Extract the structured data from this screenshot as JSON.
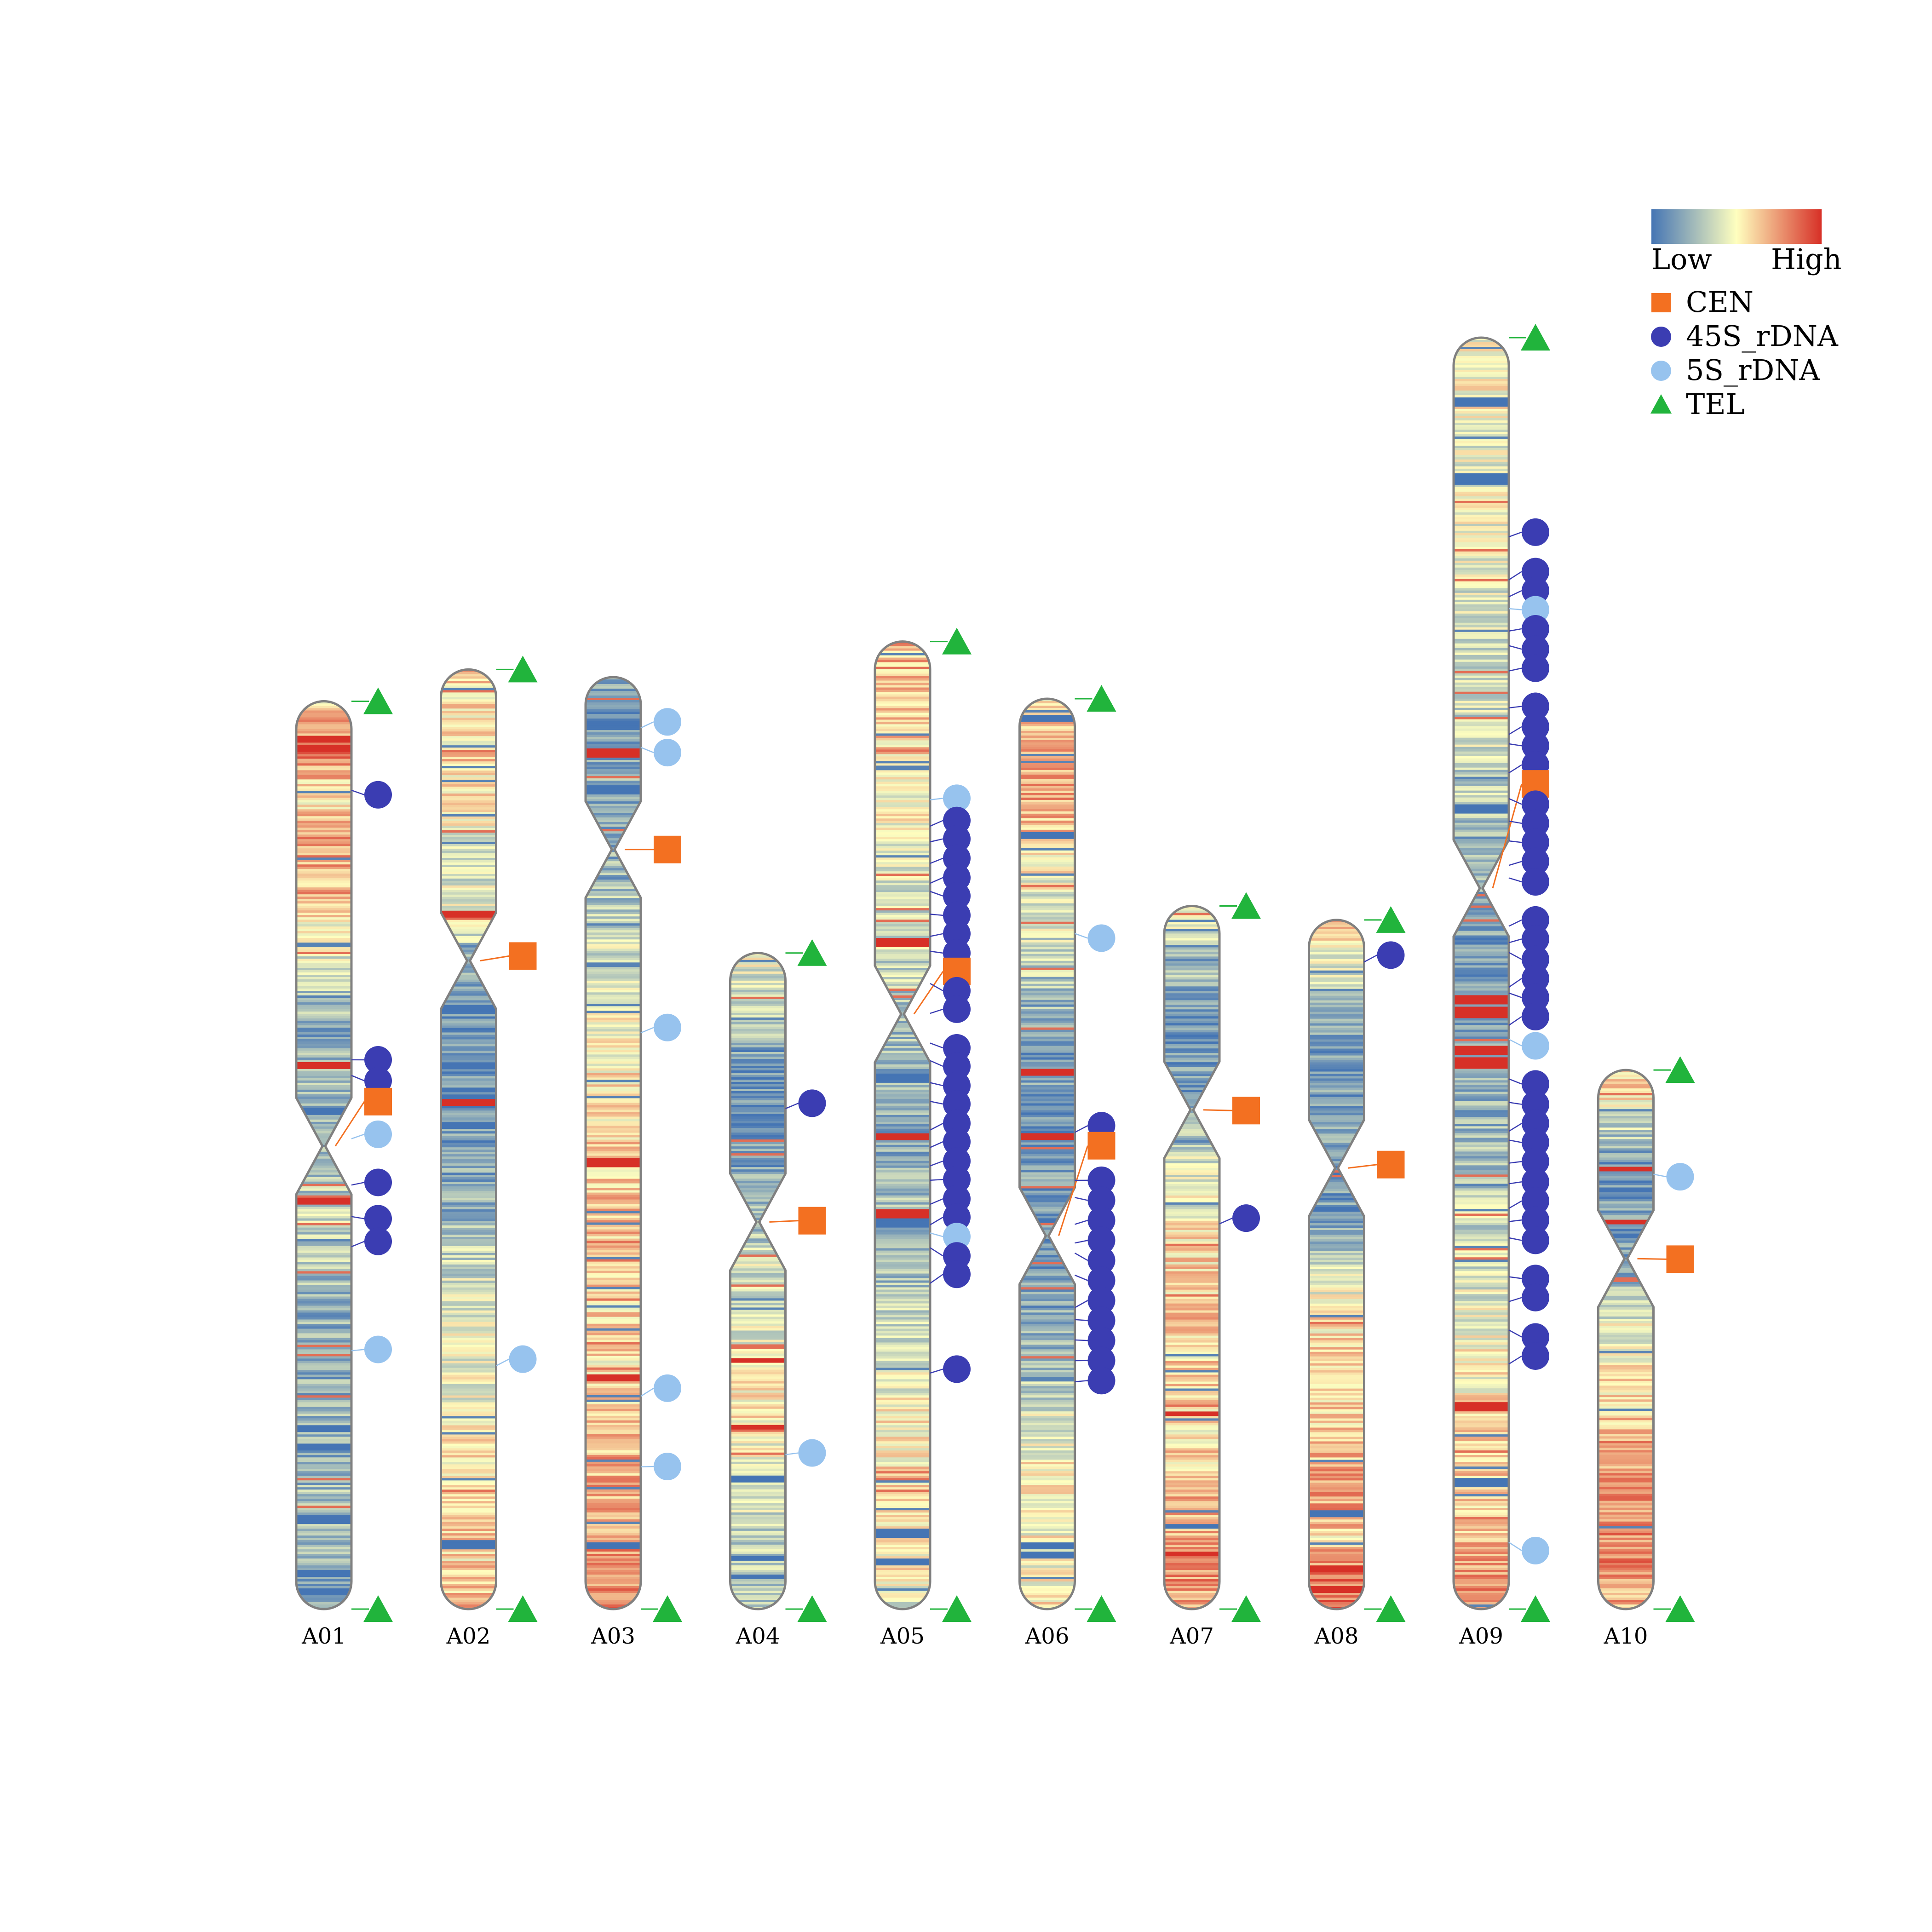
{
  "colors": {
    "cen": "#f37021",
    "rdna45s": "#3b3db2",
    "rdna5s": "#97c3ee",
    "tel": "#21b43c",
    "outline": "#808080",
    "heat_low": "#4575b4",
    "heat_mid": "#ffffbf",
    "heat_high": "#d73027"
  },
  "legend": {
    "scale_low": "Low",
    "scale_high": "High",
    "items": [
      {
        "label": "CEN",
        "shape": "square",
        "color": "#f37021"
      },
      {
        "label": "45S_rDNA",
        "shape": "circle",
        "color": "#3b3db2"
      },
      {
        "label": "5S_rDNA",
        "shape": "circle",
        "color": "#97c3ee"
      },
      {
        "label": "TEL",
        "shape": "triangle",
        "color": "#21b43c"
      }
    ]
  },
  "chart_data": {
    "type": "chromosome ideogram",
    "units": "fraction of chromosome length from top (0) to bottom (1)",
    "chromosomes": [
      {
        "name": "A01",
        "length": 0.714,
        "centromere": 0.49,
        "density": [
          0.6,
          0.82,
          0.55,
          0.75,
          0.62,
          0.45,
          0.3,
          0.2,
          0.25,
          0.18,
          0.3,
          0.35,
          0.28,
          0.22,
          0.2,
          0.25,
          0.18,
          0.35,
          0.22,
          0.12
        ],
        "hot": [
          0.04,
          0.05,
          0.4,
          0.55
        ],
        "cold": [
          0.45,
          0.8,
          0.82,
          0.9,
          0.96,
          0.98
        ],
        "markers": [
          {
            "type": "TEL",
            "pos": 0.0
          },
          {
            "type": "45S_rDNA",
            "pos": 0.103
          },
          {
            "type": "45S_rDNA",
            "pos": 0.395
          },
          {
            "type": "45S_rDNA",
            "pos": 0.418
          },
          {
            "type": "CEN",
            "pos": 0.441
          },
          {
            "type": "5S_rDNA",
            "pos": 0.477
          },
          {
            "type": "45S_rDNA",
            "pos": 0.53
          },
          {
            "type": "45S_rDNA",
            "pos": 0.57
          },
          {
            "type": "45S_rDNA",
            "pos": 0.595
          },
          {
            "type": "5S_rDNA",
            "pos": 0.714
          },
          {
            "type": "TEL",
            "pos": 1.0
          }
        ]
      },
      {
        "name": "A02",
        "length": 0.739,
        "centromere": 0.31,
        "density": [
          0.62,
          0.55,
          0.6,
          0.48,
          0.4,
          0.45,
          0.18,
          0.12,
          0.1,
          0.12,
          0.18,
          0.25,
          0.35,
          0.45,
          0.42,
          0.48,
          0.55,
          0.6,
          0.58,
          0.7
        ],
        "hot": [
          0.26,
          0.46
        ],
        "cold": [
          0.36,
          0.42,
          0.93
        ],
        "markers": [
          {
            "type": "TEL",
            "pos": 0.0
          },
          {
            "type": "CEN",
            "pos": 0.305
          },
          {
            "type": "5S_rDNA",
            "pos": 0.734
          },
          {
            "type": "TEL",
            "pos": 1.0
          }
        ]
      },
      {
        "name": "A03",
        "length": 0.733,
        "centromere": 0.185,
        "density": [
          0.2,
          0.15,
          0.22,
          0.18,
          0.25,
          0.35,
          0.42,
          0.48,
          0.55,
          0.58,
          0.62,
          0.65,
          0.62,
          0.6,
          0.55,
          0.62,
          0.68,
          0.7,
          0.75,
          0.8
        ],
        "hot": [
          0.08,
          0.52,
          0.75
        ],
        "cold": [
          0.05,
          0.12,
          0.93
        ],
        "markers": [
          {
            "type": "5S_rDNA",
            "pos": 0.048
          },
          {
            "type": "5S_rDNA",
            "pos": 0.081
          },
          {
            "type": "CEN",
            "pos": 0.185
          },
          {
            "type": "5S_rDNA",
            "pos": 0.376
          },
          {
            "type": "5S_rDNA",
            "pos": 0.763
          },
          {
            "type": "5S_rDNA",
            "pos": 0.847
          },
          {
            "type": "TEL",
            "pos": 1.0
          }
        ]
      },
      {
        "name": "A04",
        "length": 0.516,
        "centromere": 0.41,
        "density": [
          0.45,
          0.4,
          0.35,
          0.12,
          0.1,
          0.12,
          0.15,
          0.2,
          0.3,
          0.38,
          0.42,
          0.4,
          0.48,
          0.55,
          0.5,
          0.45,
          0.4,
          0.32,
          0.35,
          0.3
        ],
        "hot": [
          0.62,
          0.72
        ],
        "cold": [
          0.8,
          0.92,
          0.95
        ],
        "markers": [
          {
            "type": "TEL",
            "pos": 0.0
          },
          {
            "type": "45S_rDNA",
            "pos": 0.229
          },
          {
            "type": "CEN",
            "pos": 0.408
          },
          {
            "type": "5S_rDNA",
            "pos": 0.762
          },
          {
            "type": "TEL",
            "pos": 1.0
          }
        ]
      },
      {
        "name": "A05",
        "length": 0.761,
        "centromere": 0.385,
        "density": [
          0.68,
          0.62,
          0.6,
          0.52,
          0.45,
          0.4,
          0.35,
          0.3,
          0.25,
          0.22,
          0.18,
          0.25,
          0.22,
          0.3,
          0.42,
          0.5,
          0.55,
          0.6,
          0.55,
          0.35
        ],
        "hot": [
          0.31,
          0.51,
          0.59
        ],
        "cold": [
          0.45,
          0.6,
          0.92,
          0.95
        ],
        "markers": [
          {
            "type": "TEL",
            "pos": 0.0
          },
          {
            "type": "5S_rDNA",
            "pos": 0.162
          },
          {
            "type": "45S_rDNA",
            "pos": 0.185
          },
          {
            "type": "45S_rDNA",
            "pos": 0.204
          },
          {
            "type": "45S_rDNA",
            "pos": 0.224
          },
          {
            "type": "45S_rDNA",
            "pos": 0.244
          },
          {
            "type": "45S_rDNA",
            "pos": 0.263
          },
          {
            "type": "45S_rDNA",
            "pos": 0.283
          },
          {
            "type": "45S_rDNA",
            "pos": 0.302
          },
          {
            "type": "45S_rDNA",
            "pos": 0.322
          },
          {
            "type": "CEN",
            "pos": 0.341
          },
          {
            "type": "45S_rDNA",
            "pos": 0.361
          },
          {
            "type": "45S_rDNA",
            "pos": 0.38
          },
          {
            "type": "45S_rDNA",
            "pos": 0.42
          },
          {
            "type": "45S_rDNA",
            "pos": 0.439
          },
          {
            "type": "45S_rDNA",
            "pos": 0.459
          },
          {
            "type": "45S_rDNA",
            "pos": 0.478
          },
          {
            "type": "45S_rDNA",
            "pos": 0.498
          },
          {
            "type": "45S_rDNA",
            "pos": 0.517
          },
          {
            "type": "45S_rDNA",
            "pos": 0.537
          },
          {
            "type": "45S_rDNA",
            "pos": 0.556
          },
          {
            "type": "45S_rDNA",
            "pos": 0.576
          },
          {
            "type": "45S_rDNA",
            "pos": 0.595
          },
          {
            "type": "5S_rDNA",
            "pos": 0.615
          },
          {
            "type": "45S_rDNA",
            "pos": 0.635
          },
          {
            "type": "45S_rDNA",
            "pos": 0.654
          },
          {
            "type": "45S_rDNA",
            "pos": 0.752
          },
          {
            "type": "TEL",
            "pos": 1.0
          }
        ]
      },
      {
        "name": "A06",
        "length": 0.716,
        "centromere": 0.59,
        "density": [
          0.55,
          0.68,
          0.72,
          0.6,
          0.45,
          0.38,
          0.28,
          0.18,
          0.15,
          0.12,
          0.15,
          0.12,
          0.15,
          0.2,
          0.28,
          0.4,
          0.52,
          0.55,
          0.45,
          0.6
        ],
        "hot": [
          0.41,
          0.48
        ],
        "cold": [
          0.02,
          0.15,
          0.93,
          0.94
        ],
        "markers": [
          {
            "type": "TEL",
            "pos": 0.0
          },
          {
            "type": "5S_rDNA",
            "pos": 0.263
          },
          {
            "type": "45S_rDNA",
            "pos": 0.469
          },
          {
            "type": "CEN",
            "pos": 0.491
          },
          {
            "type": "45S_rDNA",
            "pos": 0.529
          },
          {
            "type": "45S_rDNA",
            "pos": 0.551
          },
          {
            "type": "45S_rDNA",
            "pos": 0.573
          },
          {
            "type": "45S_rDNA",
            "pos": 0.595
          },
          {
            "type": "45S_rDNA",
            "pos": 0.617
          },
          {
            "type": "45S_rDNA",
            "pos": 0.639
          },
          {
            "type": "45S_rDNA",
            "pos": 0.661
          },
          {
            "type": "45S_rDNA",
            "pos": 0.683
          },
          {
            "type": "45S_rDNA",
            "pos": 0.705
          },
          {
            "type": "45S_rDNA",
            "pos": 0.727
          },
          {
            "type": "45S_rDNA",
            "pos": 0.749
          },
          {
            "type": "TEL",
            "pos": 1.0
          }
        ]
      },
      {
        "name": "A07",
        "length": 0.553,
        "centromere": 0.29,
        "density": [
          0.45,
          0.38,
          0.25,
          0.15,
          0.12,
          0.15,
          0.3,
          0.4,
          0.45,
          0.55,
          0.6,
          0.62,
          0.58,
          0.62,
          0.55,
          0.6,
          0.68,
          0.7,
          0.75,
          0.72
        ],
        "hot": [
          0.72,
          0.92
        ],
        "cold": [
          0.88
        ],
        "markers": [
          {
            "type": "TEL",
            "pos": 0.0
          },
          {
            "type": "CEN",
            "pos": 0.291
          },
          {
            "type": "45S_rDNA",
            "pos": 0.444
          },
          {
            "type": "TEL",
            "pos": 1.0
          }
        ]
      },
      {
        "name": "A08",
        "length": 0.542,
        "centromere": 0.36,
        "density": [
          0.62,
          0.45,
          0.35,
          0.2,
          0.15,
          0.12,
          0.15,
          0.12,
          0.15,
          0.22,
          0.45,
          0.55,
          0.6,
          0.58,
          0.62,
          0.68,
          0.72,
          0.6,
          0.82,
          0.88
        ],
        "hot": [
          0.94,
          0.97
        ],
        "cold": [
          0.86
        ],
        "markers": [
          {
            "type": "TEL",
            "pos": 0.0
          },
          {
            "type": "45S_rDNA",
            "pos": 0.051
          },
          {
            "type": "CEN",
            "pos": 0.355
          },
          {
            "type": "TEL",
            "pos": 1.0
          }
        ]
      },
      {
        "name": "A09",
        "length": 1.0,
        "centromere": 0.433,
        "density": [
          0.45,
          0.5,
          0.42,
          0.48,
          0.4,
          0.35,
          0.38,
          0.3,
          0.22,
          0.15,
          0.12,
          0.2,
          0.25,
          0.35,
          0.4,
          0.48,
          0.55,
          0.6,
          0.68,
          0.78
        ],
        "hot": [
          0.37,
          0.52,
          0.53,
          0.56,
          0.57,
          0.84
        ],
        "cold": [
          0.05,
          0.11,
          0.37,
          0.9
        ],
        "markers": [
          {
            "type": "TEL",
            "pos": 0.0
          },
          {
            "type": "45S_rDNA",
            "pos": 0.153
          },
          {
            "type": "45S_rDNA",
            "pos": 0.184
          },
          {
            "type": "45S_rDNA",
            "pos": 0.199
          },
          {
            "type": "5S_rDNA",
            "pos": 0.214
          },
          {
            "type": "45S_rDNA",
            "pos": 0.229
          },
          {
            "type": "45S_rDNA",
            "pos": 0.245
          },
          {
            "type": "45S_rDNA",
            "pos": 0.26
          },
          {
            "type": "45S_rDNA",
            "pos": 0.29
          },
          {
            "type": "45S_rDNA",
            "pos": 0.306
          },
          {
            "type": "45S_rDNA",
            "pos": 0.321
          },
          {
            "type": "45S_rDNA",
            "pos": 0.336
          },
          {
            "type": "CEN",
            "pos": 0.351
          },
          {
            "type": "45S_rDNA",
            "pos": 0.367
          },
          {
            "type": "45S_rDNA",
            "pos": 0.382
          },
          {
            "type": "45S_rDNA",
            "pos": 0.397
          },
          {
            "type": "45S_rDNA",
            "pos": 0.412
          },
          {
            "type": "45S_rDNA",
            "pos": 0.428
          },
          {
            "type": "45S_rDNA",
            "pos": 0.458
          },
          {
            "type": "45S_rDNA",
            "pos": 0.473
          },
          {
            "type": "45S_rDNA",
            "pos": 0.489
          },
          {
            "type": "45S_rDNA",
            "pos": 0.504
          },
          {
            "type": "45S_rDNA",
            "pos": 0.519
          },
          {
            "type": "45S_rDNA",
            "pos": 0.534
          },
          {
            "type": "5S_rDNA",
            "pos": 0.557
          },
          {
            "type": "45S_rDNA",
            "pos": 0.587
          },
          {
            "type": "45S_rDNA",
            "pos": 0.603
          },
          {
            "type": "45S_rDNA",
            "pos": 0.618
          },
          {
            "type": "45S_rDNA",
            "pos": 0.633
          },
          {
            "type": "45S_rDNA",
            "pos": 0.648
          },
          {
            "type": "45S_rDNA",
            "pos": 0.664
          },
          {
            "type": "45S_rDNA",
            "pos": 0.679
          },
          {
            "type": "45S_rDNA",
            "pos": 0.694
          },
          {
            "type": "45S_rDNA",
            "pos": 0.71
          },
          {
            "type": "45S_rDNA",
            "pos": 0.74
          },
          {
            "type": "45S_rDNA",
            "pos": 0.755
          },
          {
            "type": "45S_rDNA",
            "pos": 0.786
          },
          {
            "type": "45S_rDNA",
            "pos": 0.801
          },
          {
            "type": "5S_rDNA",
            "pos": 0.954
          },
          {
            "type": "TEL",
            "pos": 1.0
          }
        ]
      },
      {
        "name": "A10",
        "length": 0.424,
        "centromere": 0.35,
        "density": [
          0.62,
          0.55,
          0.35,
          0.15,
          0.12,
          0.15,
          0.12,
          0.18,
          0.35,
          0.45,
          0.52,
          0.58,
          0.62,
          0.7,
          0.75,
          0.78,
          0.8,
          0.78,
          0.72,
          0.68
        ],
        "hot": [
          0.18,
          0.28
        ],
        "cold": [
          0.22
        ],
        "markers": [
          {
            "type": "TEL",
            "pos": 0.0
          },
          {
            "type": "5S_rDNA",
            "pos": 0.198
          },
          {
            "type": "CEN",
            "pos": 0.351
          },
          {
            "type": "TEL",
            "pos": 1.0
          }
        ]
      }
    ]
  }
}
